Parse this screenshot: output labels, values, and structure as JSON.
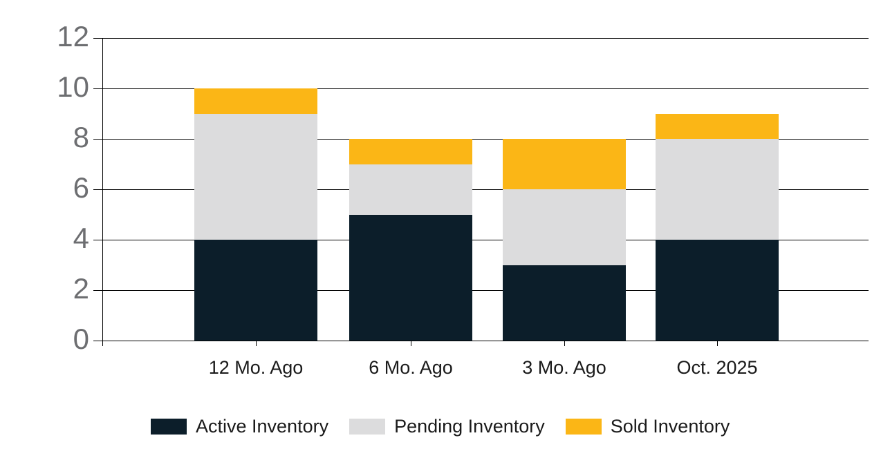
{
  "chart_data": {
    "type": "bar",
    "stacked": true,
    "title": "",
    "categories": [
      "12 Mo. Ago",
      "6 Mo. Ago",
      "3 Mo. Ago",
      "Oct. 2025"
    ],
    "series": [
      {
        "name": "Active Inventory",
        "color": "#0C1E2A",
        "values": [
          4,
          5,
          3,
          4
        ]
      },
      {
        "name": "Pending Inventory",
        "color": "#DCDCDD",
        "values": [
          5,
          2,
          3,
          4
        ]
      },
      {
        "name": "Sold Inventory",
        "color": "#FBB616",
        "values": [
          1,
          1,
          2,
          1
        ]
      }
    ],
    "stack_totals": [
      10,
      8,
      8,
      9
    ],
    "y_axis": {
      "min": 0,
      "max": 12,
      "tick_step": 2,
      "tick_labels": [
        "0",
        "2",
        "4",
        "6",
        "8",
        "10",
        "12"
      ],
      "label_color": "#6D6E71"
    },
    "x_axis": {
      "label_color": "#1a1a1a"
    },
    "grid": true,
    "gridline_color": "#000000",
    "legend_position": "bottom",
    "background": "#FFFFFF"
  }
}
